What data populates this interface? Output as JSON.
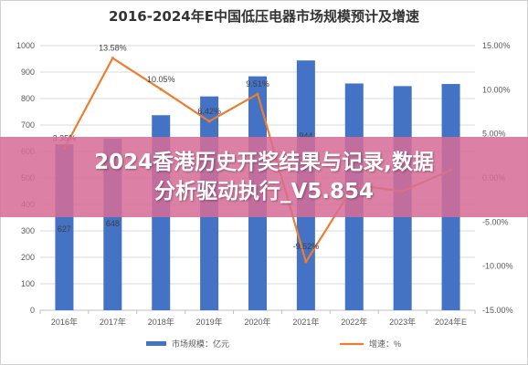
{
  "chart_data": {
    "type": "bar",
    "title": "2016-2024年E中国低压电器市场规模预计及增速",
    "categories": [
      "2016年",
      "2017年",
      "2018年",
      "2019年",
      "2020年",
      "2021年",
      "2022年",
      "2023年",
      "2024年E"
    ],
    "series": [
      {
        "name": "市场规模：亿元",
        "type": "bar",
        "axis": "left",
        "values": [
          627,
          648,
          737,
          808,
          884,
          944,
          857,
          847,
          855
        ],
        "color": "#4472c4"
      },
      {
        "name": "增速：%",
        "type": "line",
        "axis": "right",
        "values": [
          3.35,
          13.58,
          10.05,
          6.42,
          9.51,
          -9.52,
          -0.8,
          -1.5,
          0.9
        ],
        "color": "#ed7d31"
      }
    ],
    "bar_labels": [
      "627",
      "648",
      "",
      "",
      "",
      "944",
      "",
      "",
      ""
    ],
    "line_labels": [
      "3.35%",
      "13.58%",
      "10.05%",
      "6.42%",
      "9.51%",
      "-9.52%",
      "",
      "",
      ""
    ],
    "left_axis": {
      "min": 0,
      "max": 1000,
      "step": 100,
      "ticks": [
        "0",
        "100",
        "200",
        "300",
        "400",
        "500",
        "600",
        "700",
        "800",
        "900",
        "1000"
      ]
    },
    "right_axis": {
      "min": -15,
      "max": 15,
      "step": 5,
      "ticks": [
        "-15.00%",
        "-10.00%",
        "-5.00%",
        "0.00%",
        "5.00%",
        "10.00%",
        "15.00%"
      ]
    },
    "grid": true,
    "legend_position": "bottom"
  },
  "overlay": {
    "line1": "2024香港历史开奖结果与记录,数据",
    "line2": "分析驱动执行_V5.854"
  }
}
